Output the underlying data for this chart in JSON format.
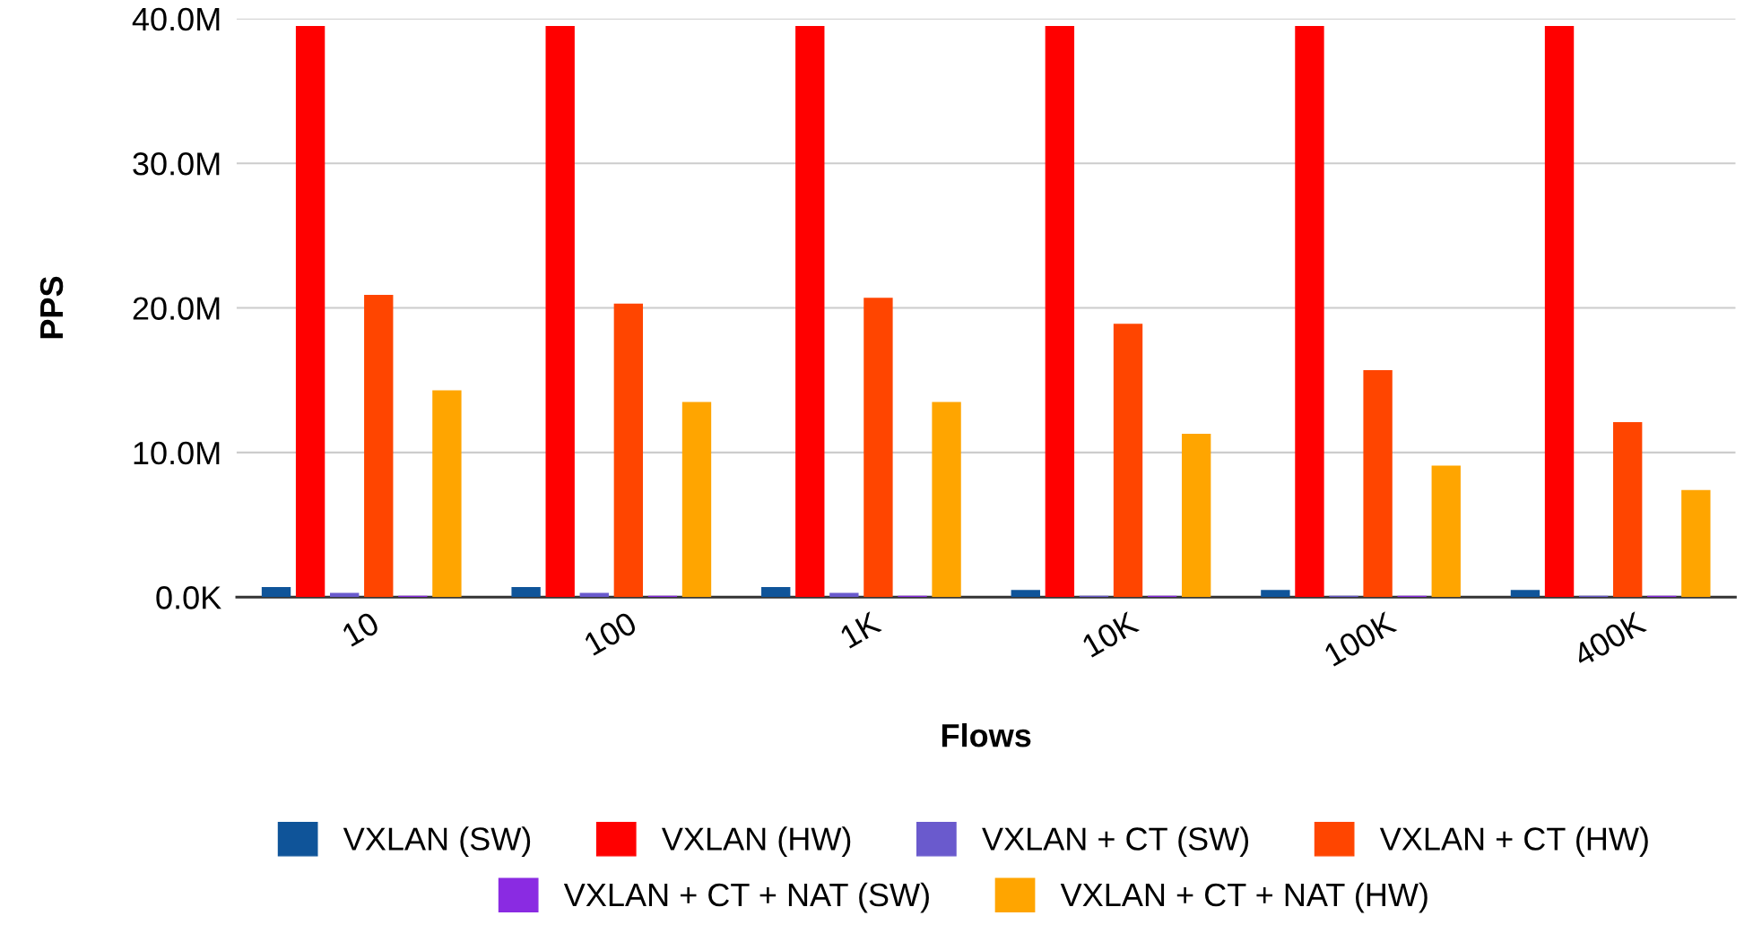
{
  "chart_data": {
    "type": "bar",
    "xlabel": "Flows",
    "ylabel": "PPS",
    "categories": [
      "10",
      "100",
      "1K",
      "10K",
      "100K",
      "400K"
    ],
    "series": [
      {
        "name": "VXLAN (SW)",
        "color": "#0f5499",
        "values": [
          0.7,
          0.7,
          0.7,
          0.5,
          0.5,
          0.5
        ]
      },
      {
        "name": "VXLAN (HW)",
        "color": "#ff0000",
        "values": [
          39.5,
          39.5,
          39.5,
          39.5,
          39.5,
          39.5
        ]
      },
      {
        "name": "VXLAN + CT (SW)",
        "color": "#6a5acd",
        "values": [
          0.3,
          0.3,
          0.3,
          0.1,
          0.1,
          0.1
        ]
      },
      {
        "name": "VXLAN + CT (HW)",
        "color": "#ff4500",
        "values": [
          20.9,
          20.3,
          20.7,
          18.9,
          15.7,
          12.1
        ]
      },
      {
        "name": "VXLAN + CT + NAT (SW)",
        "color": "#8a2be2",
        "values": [
          0.1,
          0.1,
          0.1,
          0.1,
          0.1,
          0.1
        ]
      },
      {
        "name": "VXLAN + CT + NAT (HW)",
        "color": "#ffa500",
        "values": [
          14.3,
          13.5,
          13.5,
          11.3,
          9.1,
          7.4
        ]
      }
    ],
    "ylim": [
      0,
      40
    ],
    "yticks": [
      {
        "value": 0,
        "label": "0.0K"
      },
      {
        "value": 10,
        "label": "10.0M"
      },
      {
        "value": 20,
        "label": "20.0M"
      },
      {
        "value": 30,
        "label": "30.0M"
      },
      {
        "value": 40,
        "label": "40.0M"
      }
    ],
    "grid": "y",
    "legend": "bottom"
  }
}
